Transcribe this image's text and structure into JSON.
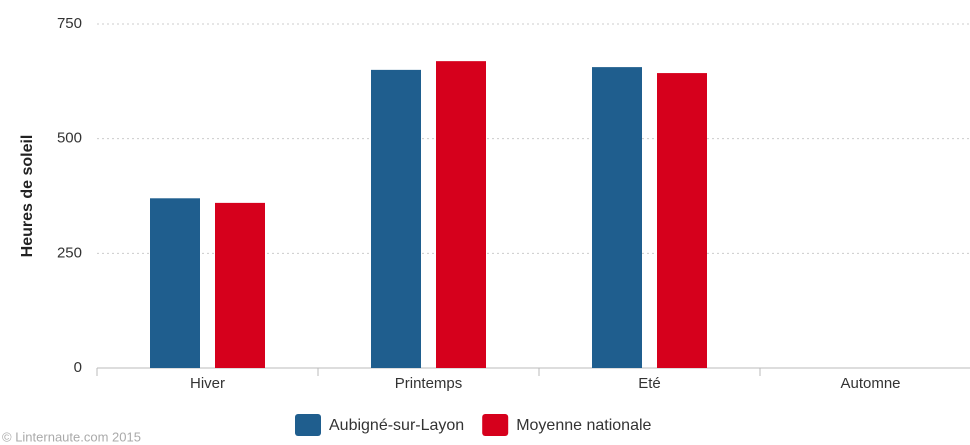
{
  "chart_data": {
    "type": "bar",
    "y_label": "Heures de soleil",
    "categories": [
      "Hiver",
      "Printemps",
      "Eté",
      "Automne"
    ],
    "series": [
      {
        "name": "Aubigné-sur-Layon",
        "color": "#1f5e8e",
        "values": [
          370,
          650,
          656,
          null
        ]
      },
      {
        "name": "Moyenne nationale",
        "color": "#d6001c",
        "values": [
          360,
          669,
          643,
          null
        ]
      }
    ],
    "ylim": [
      0,
      750
    ],
    "yticks": [
      0,
      250,
      500,
      750
    ],
    "grid": true,
    "legend": "bottom",
    "credit": "© Linternaute.com 2015"
  }
}
